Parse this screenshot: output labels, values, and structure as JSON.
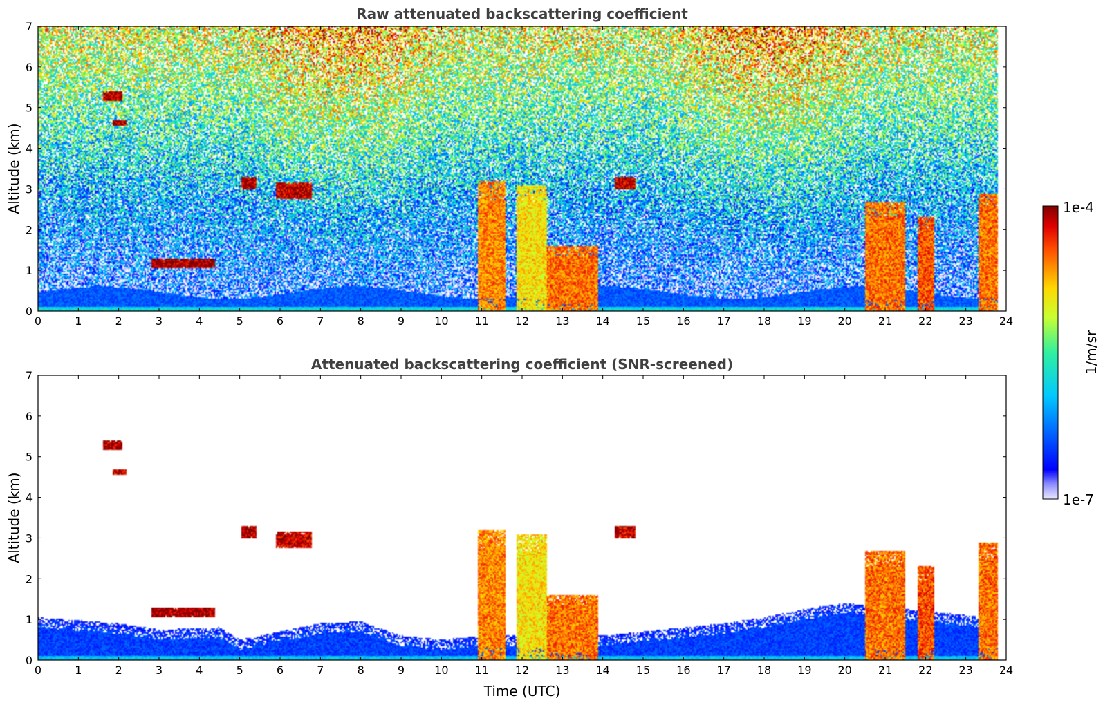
{
  "chart_data": [
    {
      "type": "heatmap",
      "title": "Raw attenuated backscattering coefficient",
      "xlabel": "",
      "ylabel": "Altitude (km)",
      "xlim": [
        0,
        24
      ],
      "ylim": [
        0,
        7
      ],
      "xticks": [
        "0",
        "1",
        "2",
        "3",
        "4",
        "5",
        "6",
        "7",
        "8",
        "9",
        "10",
        "11",
        "12",
        "13",
        "14",
        "15",
        "16",
        "17",
        "18",
        "19",
        "20",
        "21",
        "22",
        "23",
        "24"
      ],
      "yticks": [
        "0",
        "1",
        "2",
        "3",
        "4",
        "5",
        "6",
        "7"
      ],
      "screened": false,
      "features": [
        {
          "name": "boundary-layer",
          "t0": 0,
          "t1": 23.8,
          "z0": 0,
          "z1": 0.6,
          "level": 0.18
        },
        {
          "name": "elevated-layer",
          "t0": 2.8,
          "t1": 4.4,
          "z0": 1.05,
          "z1": 1.3,
          "level": 0.98
        },
        {
          "name": "cloud-5km-a",
          "t0": 1.6,
          "t1": 2.1,
          "z0": 5.15,
          "z1": 5.4,
          "level": 0.97
        },
        {
          "name": "cloud-4.6km",
          "t0": 1.85,
          "t1": 2.2,
          "z0": 4.55,
          "z1": 4.7,
          "level": 0.95
        },
        {
          "name": "cloud-3.2km-a",
          "t0": 5.05,
          "t1": 5.4,
          "z0": 3.0,
          "z1": 3.3,
          "level": 0.97
        },
        {
          "name": "cloud-3km-b",
          "t0": 5.9,
          "t1": 6.8,
          "z0": 2.75,
          "z1": 3.15,
          "level": 0.95
        },
        {
          "name": "cloud-3km-c",
          "t0": 14.3,
          "t1": 14.8,
          "z0": 3.0,
          "z1": 3.3,
          "level": 0.95
        },
        {
          "name": "precip-11h",
          "t0": 10.9,
          "t1": 11.6,
          "z0": 0,
          "z1": 3.2,
          "level": 0.8
        },
        {
          "name": "precip-12h",
          "t0": 11.85,
          "t1": 12.6,
          "z0": 0,
          "z1": 3.1,
          "level": 0.7
        },
        {
          "name": "precip-13h",
          "t0": 12.6,
          "t1": 13.9,
          "z0": 0,
          "z1": 1.6,
          "level": 0.82
        },
        {
          "name": "precip-21h",
          "t0": 20.5,
          "t1": 21.5,
          "z0": 0,
          "z1": 2.7,
          "level": 0.82
        },
        {
          "name": "precip-22h",
          "t0": 21.8,
          "t1": 22.2,
          "z0": 0,
          "z1": 2.3,
          "level": 0.85
        },
        {
          "name": "precip-23.5h",
          "t0": 23.3,
          "t1": 23.8,
          "z0": 0,
          "z1": 2.9,
          "level": 0.82
        }
      ]
    },
    {
      "type": "heatmap",
      "title": "Attenuated backscattering coefficient (SNR-screened)",
      "xlabel": "Time (UTC)",
      "ylabel": "Altitude (km)",
      "xlim": [
        0,
        24
      ],
      "ylim": [
        0,
        7
      ],
      "xticks": [
        "0",
        "1",
        "2",
        "3",
        "4",
        "5",
        "6",
        "7",
        "8",
        "9",
        "10",
        "11",
        "12",
        "13",
        "14",
        "15",
        "16",
        "17",
        "18",
        "19",
        "20",
        "21",
        "22",
        "23",
        "24"
      ],
      "yticks": [
        "0",
        "1",
        "2",
        "3",
        "4",
        "5",
        "6",
        "7"
      ],
      "screened": true,
      "boundary_layer_top_km": [
        [
          0,
          1.05
        ],
        [
          2,
          0.9
        ],
        [
          3,
          0.75
        ],
        [
          4.5,
          0.8
        ],
        [
          5,
          0.5
        ],
        [
          6,
          0.7
        ],
        [
          7,
          0.9
        ],
        [
          8,
          0.95
        ],
        [
          9,
          0.6
        ],
        [
          10,
          0.5
        ],
        [
          11,
          0.6
        ],
        [
          14,
          0.6
        ],
        [
          16,
          0.8
        ],
        [
          17,
          0.9
        ],
        [
          18,
          1.05
        ],
        [
          19,
          1.25
        ],
        [
          20,
          1.4
        ],
        [
          21,
          1.3
        ],
        [
          22,
          1.2
        ],
        [
          23,
          1.1
        ],
        [
          23.8,
          1.0
        ]
      ]
    }
  ],
  "colorbar": {
    "max_label": "1e-4",
    "min_label": "1e-7",
    "label": "1/m/sr",
    "colormap": "jet"
  }
}
